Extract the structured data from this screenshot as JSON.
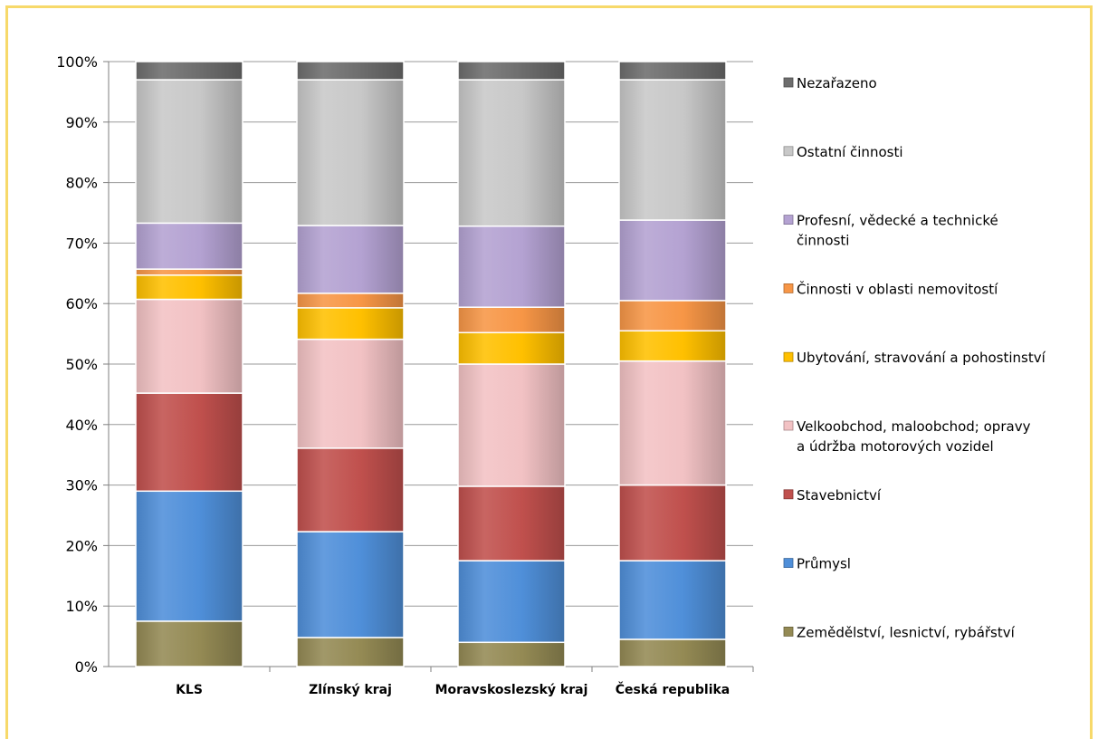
{
  "chart_data": {
    "type": "bar",
    "stacked": true,
    "percent": true,
    "categories": [
      "KLS",
      "Zlínský kraj",
      "Moravskoslezský kraj",
      "Česká republika"
    ],
    "ylim": [
      0,
      100
    ],
    "yticks": [
      "0%",
      "10%",
      "20%",
      "30%",
      "40%",
      "50%",
      "60%",
      "70%",
      "80%",
      "90%",
      "100%"
    ],
    "grid": true,
    "legend_position": "right",
    "series": [
      {
        "name": "Zemědělství, lesnictví, rybářství",
        "color": "#948a54",
        "values": [
          7.5,
          4.8,
          4.0,
          4.5
        ]
      },
      {
        "name": "Průmysl",
        "color": "#4f8fd9",
        "values": [
          21.5,
          17.5,
          13.5,
          13.0
        ]
      },
      {
        "name": "Stavebnictví",
        "color": "#c0504d",
        "values": [
          16.2,
          13.8,
          12.3,
          12.5
        ]
      },
      {
        "name": "Velkoobchod, maloobchod; opravy a údržba motorových vozidel",
        "color": "#f2c2c4",
        "values": [
          15.5,
          18.0,
          20.2,
          20.5
        ]
      },
      {
        "name": "Ubytování, stravování a pohostinství",
        "color": "#ffc000",
        "values": [
          4.0,
          5.2,
          5.2,
          5.0
        ]
      },
      {
        "name": "Činnosti v oblasti nemovitostí",
        "color": "#f79646",
        "values": [
          1.0,
          2.4,
          4.2,
          5.0
        ]
      },
      {
        "name": "Profesní, vědecké a technické činnosti",
        "color": "#b4a2d2",
        "values": [
          7.6,
          11.2,
          13.4,
          13.3
        ]
      },
      {
        "name": "Ostatní činnosti",
        "color": "#c8c8c8",
        "values": [
          23.7,
          24.1,
          24.2,
          23.2
        ]
      },
      {
        "name": "Nezařazeno",
        "color": "#6d6d6d",
        "values": [
          3.0,
          3.0,
          3.0,
          3.0
        ]
      }
    ],
    "legend": [
      {
        "lines": [
          "Nezařazeno"
        ],
        "color": "#6d6d6d"
      },
      {
        "lines": [
          "Ostatní činnosti"
        ],
        "color": "#c8c8c8"
      },
      {
        "lines": [
          "Profesní, vědecké a technické",
          "činnosti"
        ],
        "color": "#b4a2d2"
      },
      {
        "lines": [
          "Činnosti v oblasti nemovitostí"
        ],
        "color": "#f79646"
      },
      {
        "lines": [
          "Ubytování, stravování a pohostinství"
        ],
        "color": "#ffc000"
      },
      {
        "lines": [
          "Velkoobchod, maloobchod; opravy",
          "a údržba motorových vozidel"
        ],
        "color": "#f2c2c4"
      },
      {
        "lines": [
          "Stavebnictví"
        ],
        "color": "#c0504d"
      },
      {
        "lines": [
          "Průmysl"
        ],
        "color": "#4f8fd9"
      },
      {
        "lines": [
          "Zemědělství, lesnictví, rybářství"
        ],
        "color": "#948a54"
      }
    ]
  }
}
